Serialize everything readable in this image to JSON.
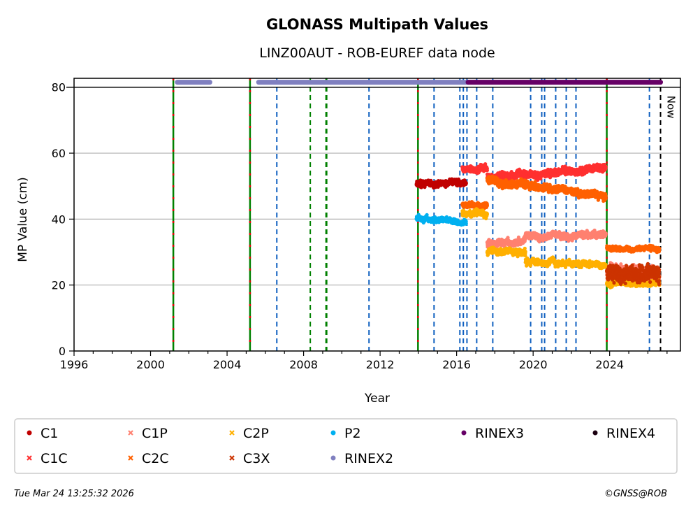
{
  "chart_data": {
    "type": "scatter",
    "title": "GLONASS Multipath Values",
    "subtitle": "LINZ00AUT - ROB-EUREF data node",
    "xlabel": "Year",
    "ylabel": "MP Value (cm)",
    "xlim": [
      1996,
      2027.7
    ],
    "ylim": [
      0,
      82.7
    ],
    "xticks": [
      1996,
      2000,
      2004,
      2008,
      2012,
      2016,
      2020,
      2024
    ],
    "yticks": [
      0,
      20,
      40,
      60,
      80
    ],
    "grid": "horizontal",
    "now_label": "Now",
    "now_year": 2026.66,
    "vlines": {
      "receiver_antenna_change": [
        2001.19,
        2005.2,
        2013.98,
        2023.85
      ],
      "antenna_change": [
        2008.35,
        2009.19
      ],
      "receiver_change": [
        2006.6,
        2011.42,
        2014.82,
        2016.17,
        2016.35,
        2016.54,
        2017.05,
        2017.89,
        2019.87,
        2020.45,
        2020.6,
        2021.18,
        2021.73,
        2022.24,
        2026.08
      ]
    },
    "rinex_bars": [
      {
        "name": "RINEX2",
        "value": 81.5,
        "ranges": [
          [
            2001.4,
            2003.1
          ],
          [
            2005.65,
            2016.54
          ]
        ]
      },
      {
        "name": "RINEX3",
        "value": 81.5,
        "ranges": [
          [
            2016.6,
            2026.66
          ]
        ]
      }
    ],
    "series": [
      {
        "name": "C1",
        "color": "#c00000",
        "marker": "dot",
        "segments": [
          {
            "x": [
              2013.9,
              2016.5
            ],
            "y": [
              50.5,
              51
            ],
            "spread": 1.2
          }
        ]
      },
      {
        "name": "C1C",
        "color": "#ff3030",
        "marker": "x",
        "segments": [
          {
            "x": [
              2016.3,
              2017.6
            ],
            "y": [
              55.5,
              55
            ],
            "spread": 1.3
          },
          {
            "x": [
              2017.6,
              2023.8
            ],
            "y": [
              52.5,
              55.5
            ],
            "spread": 1.5
          }
        ]
      },
      {
        "name": "C1P",
        "color": "#ff8070",
        "marker": "x",
        "segments": [
          {
            "x": [
              2017.6,
              2019.6
            ],
            "y": [
              32.5,
              33.5
            ],
            "spread": 1.3
          },
          {
            "x": [
              2019.6,
              2023.8
            ],
            "y": [
              35,
              35
            ],
            "spread": 1.3
          },
          {
            "x": [
              2023.85,
              2026.6
            ],
            "y": [
              24,
              24
            ],
            "spread": 3
          }
        ]
      },
      {
        "name": "C2C",
        "color": "#ff6000",
        "marker": "x",
        "segments": [
          {
            "x": [
              2016.3,
              2017.6
            ],
            "y": [
              44,
              44
            ],
            "spread": 1
          },
          {
            "x": [
              2017.6,
              2023.8
            ],
            "y": [
              52,
              47
            ],
            "spread": 1.5
          },
          {
            "x": [
              2023.85,
              2026.6
            ],
            "y": [
              31.5,
              31
            ],
            "spread": 0.8
          }
        ]
      },
      {
        "name": "C2P",
        "color": "#ffb000",
        "marker": "x",
        "segments": [
          {
            "x": [
              2016.3,
              2017.6
            ],
            "y": [
              42,
              41.5
            ],
            "spread": 1.2
          },
          {
            "x": [
              2017.6,
              2019.6
            ],
            "y": [
              30,
              30
            ],
            "spread": 1.2
          },
          {
            "x": [
              2019.6,
              2023.8
            ],
            "y": [
              27.5,
              26
            ],
            "spread": 1.2
          },
          {
            "x": [
              2023.85,
              2026.6
            ],
            "y": [
              20.5,
              20.5
            ],
            "spread": 1
          }
        ]
      },
      {
        "name": "C3X",
        "color": "#cc3300",
        "marker": "x",
        "segments": [
          {
            "x": [
              2023.85,
              2026.6
            ],
            "y": [
              23.5,
              23.5
            ],
            "spread": 3.5
          }
        ]
      },
      {
        "name": "P2",
        "color": "#00b0f0",
        "marker": "dot",
        "segments": [
          {
            "x": [
              2013.9,
              2016.5
            ],
            "y": [
              40.5,
              39
            ],
            "spread": 1
          }
        ]
      },
      {
        "name": "RINEX2",
        "color": "#8080c0",
        "marker": "dot",
        "segments": []
      },
      {
        "name": "RINEX3",
        "color": "#660066",
        "marker": "dot",
        "segments": []
      },
      {
        "name": "RINEX4",
        "color": "#1a0010",
        "marker": "dot",
        "segments": []
      }
    ],
    "legend_order": [
      "C1",
      "C1P",
      "C2P",
      "P2",
      "RINEX3",
      "RINEX4",
      "C1C",
      "C2C",
      "C3X",
      "RINEX2"
    ],
    "legend_placement": "bottom"
  },
  "footer": {
    "timestamp": "Tue Mar 24 13:25:32 2026",
    "copyright": "©GNSS@ROB"
  }
}
